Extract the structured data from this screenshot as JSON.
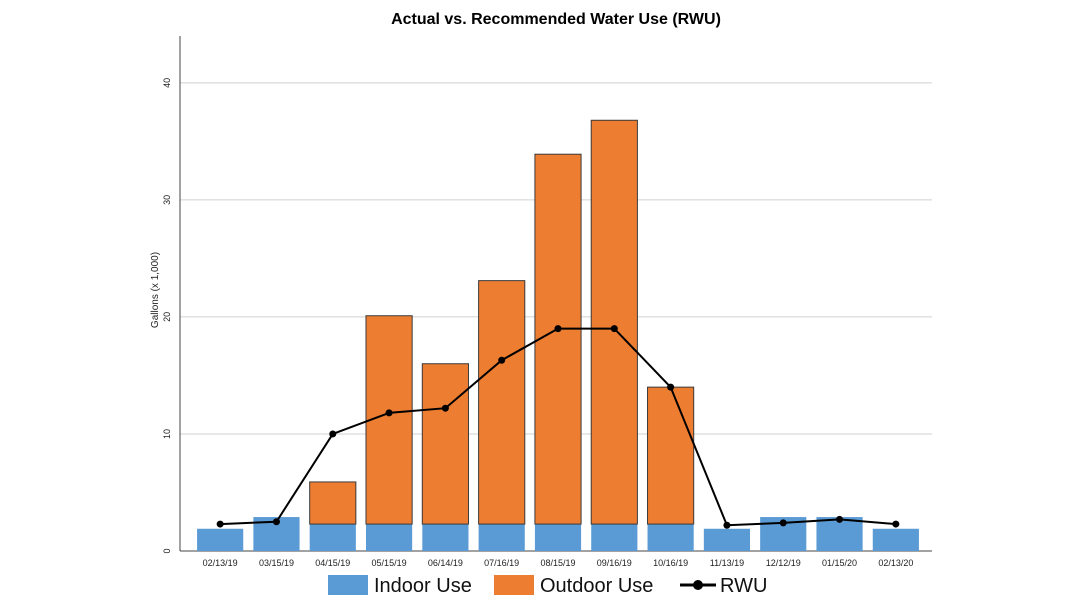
{
  "chart_data": {
    "type": "bar",
    "title": "Actual vs. Recommended Water Use (RWU)",
    "xlabel": "",
    "ylabel": "Gallons (x 1,000)",
    "ylim": [
      0,
      44
    ],
    "yticks": [
      0,
      10,
      20,
      30,
      40
    ],
    "grid": "horizontal",
    "stacked": true,
    "legend_position": "bottom",
    "categories": [
      "02/13/19",
      "03/15/19",
      "04/15/19",
      "05/15/19",
      "06/14/19",
      "07/16/19",
      "08/15/19",
      "09/16/19",
      "10/16/19",
      "11/13/19",
      "12/12/19",
      "01/15/20",
      "02/13/20"
    ],
    "series": [
      {
        "name": "Indoor Use",
        "type": "bar",
        "color": "#5b9bd5",
        "values": [
          1.9,
          2.9,
          2.3,
          2.3,
          2.3,
          2.3,
          2.3,
          2.3,
          2.3,
          1.9,
          2.9,
          2.9,
          1.9
        ]
      },
      {
        "name": "Outdoor Use",
        "type": "bar",
        "color": "#ed7d31",
        "values": [
          0,
          0,
          3.6,
          17.8,
          13.7,
          20.8,
          31.6,
          34.5,
          11.7,
          0,
          0,
          0,
          0
        ]
      },
      {
        "name": "RWU",
        "type": "line",
        "color": "#000000",
        "values": [
          2.3,
          2.5,
          10.0,
          11.8,
          12.2,
          16.3,
          19.0,
          19.0,
          14.0,
          2.2,
          2.4,
          2.7,
          2.3
        ]
      }
    ]
  }
}
